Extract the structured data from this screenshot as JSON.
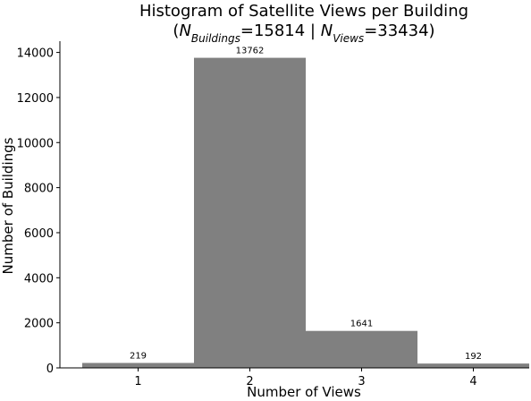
{
  "chart_data": {
    "type": "histogram",
    "title": "Histogram of Satellite Views per Building",
    "subtitle_parts": [
      "(",
      "N",
      "Buildings",
      "=15814 | ",
      "N",
      "Views",
      "=33434)"
    ],
    "x_label": "Number of Views",
    "y_label": "Number of Buildings",
    "bins": [
      0.5,
      1.5,
      2.5,
      3.5,
      4.5
    ],
    "values": [
      219,
      13762,
      1641,
      192
    ],
    "color": "#808080",
    "xlim": [
      0.3,
      4.5
    ],
    "xticks": [
      1,
      2,
      3,
      4
    ],
    "ylim": [
      0,
      14500
    ],
    "yticks": [
      0,
      2000,
      4000,
      6000,
      8000,
      10000,
      12000,
      14000
    ],
    "grid": false
  }
}
